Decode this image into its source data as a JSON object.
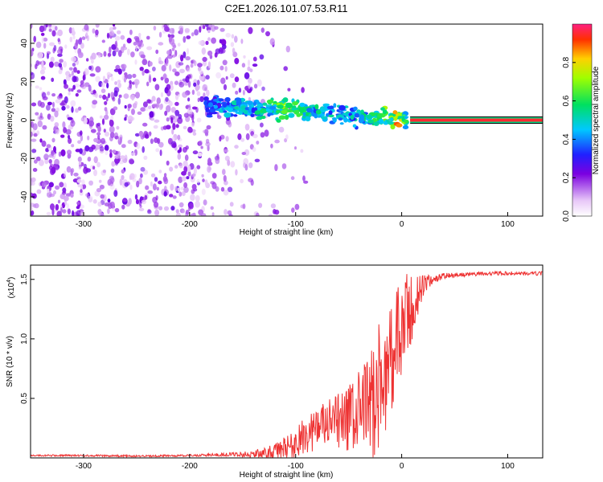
{
  "title": "C2E1.2026.101.07.53.R11",
  "chart_data": [
    {
      "type": "heatmap",
      "title": "C2E1.2026.101.07.53.R11",
      "xlabel": "Height of straight line (km)",
      "ylabel": "Frequency (Hz)",
      "xlim": [
        -350,
        133
      ],
      "ylim": [
        -50,
        50
      ],
      "xticks": [
        -300,
        -200,
        -100,
        0,
        100
      ],
      "yticks": [
        -40,
        -20,
        0,
        20,
        40
      ],
      "colorbar": {
        "label": "Normalized spectral amplitude",
        "range": [
          0,
          1
        ],
        "ticks": [
          0.0,
          0.2,
          0.4,
          0.6,
          0.8
        ],
        "tick_labels": [
          "0.0",
          "0.2",
          "0.4",
          "0.6",
          "0.8"
        ]
      },
      "carrier": {
        "x_start": 8,
        "x_end": 133,
        "frequency": 0,
        "amplitude": 0.95
      },
      "signal_trace": {
        "x": [
          -185,
          -170,
          -150,
          -130,
          -110,
          -90,
          -70,
          -50,
          -35,
          -20,
          -5,
          5
        ],
        "frequency": [
          7,
          7,
          6,
          6,
          6,
          5,
          4,
          2,
          1,
          0.5,
          0.5,
          0
        ],
        "amplitude": [
          0.35,
          0.45,
          0.5,
          0.55,
          0.7,
          0.55,
          0.5,
          0.5,
          0.55,
          0.6,
          0.85,
          0.6
        ]
      },
      "noise_region": {
        "x_start": -350,
        "x_end": -130,
        "frequency_range": [
          -50,
          50
        ],
        "amplitude_range": [
          0.05,
          0.25
        ]
      }
    },
    {
      "type": "line",
      "xlabel": "Height of straight line (km)",
      "ylabel": "SNR (10 * v/v)",
      "y_multiplier_label": "(x10",
      "y_multiplier_exp": "4",
      "xlim": [
        -350,
        133
      ],
      "ylim": [
        0,
        1.62
      ],
      "xticks": [
        -300,
        -200,
        -100,
        0,
        100
      ],
      "yticks": [
        0.5,
        1.0,
        1.5
      ],
      "ytick_labels": [
        "0.5",
        "1.0",
        "1.5"
      ],
      "series": [
        {
          "name": "SNR",
          "color": "#ee3333",
          "x": [
            -350,
            -300,
            -250,
            -200,
            -160,
            -140,
            -120,
            -100,
            -90,
            -80,
            -70,
            -60,
            -50,
            -40,
            -30,
            -20,
            -10,
            0,
            10,
            20,
            30,
            40,
            60,
            80,
            100,
            133
          ],
          "mean": [
            0.02,
            0.02,
            0.015,
            0.02,
            0.03,
            0.03,
            0.05,
            0.12,
            0.2,
            0.25,
            0.28,
            0.3,
            0.33,
            0.38,
            0.45,
            0.6,
            0.85,
            1.05,
            1.25,
            1.45,
            1.5,
            1.53,
            1.54,
            1.55,
            1.55,
            1.55
          ],
          "spread": [
            0.005,
            0.005,
            0.005,
            0.005,
            0.01,
            0.02,
            0.04,
            0.08,
            0.1,
            0.12,
            0.13,
            0.15,
            0.18,
            0.22,
            0.3,
            0.35,
            0.3,
            0.3,
            0.2,
            0.06,
            0.02,
            0.015,
            0.01,
            0.01,
            0.01,
            0.01
          ]
        }
      ]
    }
  ]
}
